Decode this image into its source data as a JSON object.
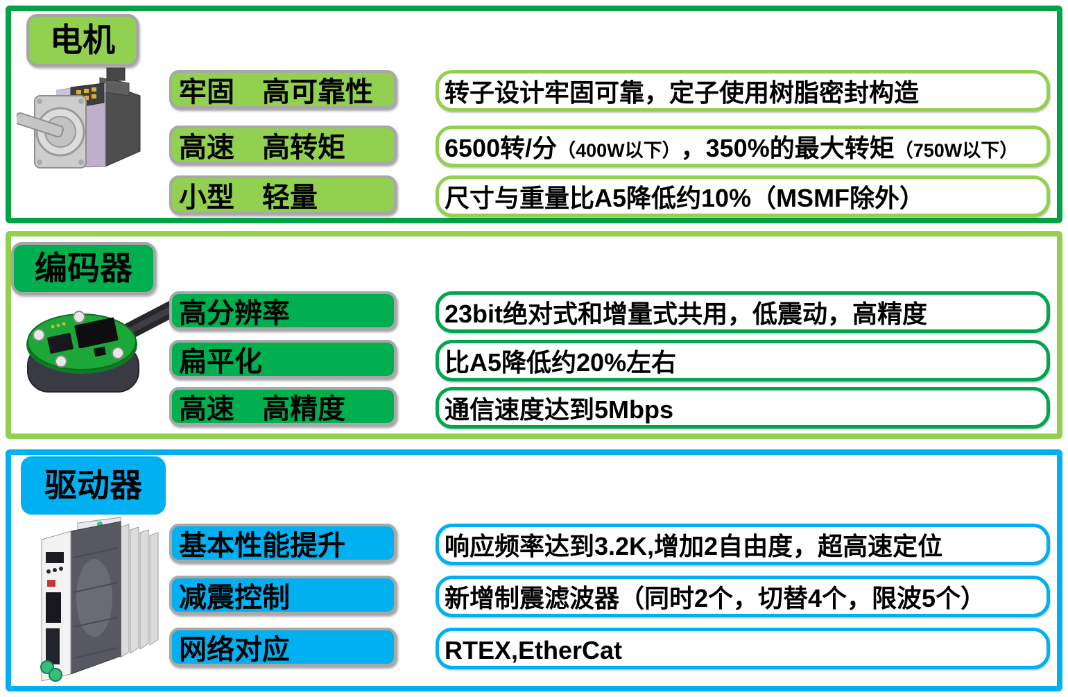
{
  "slide": {
    "sections": [
      {
        "title": "电机",
        "image": "servo-motor-3d-render",
        "theme": {
          "panel_border": "#00a445",
          "badge_fill": "#92d050",
          "desc_border": "#92d050"
        },
        "rows": [
          {
            "label": "牢固　高可靠性",
            "desc": [
              {
                "t": "转子设计牢固可靠，定子使用树脂密封构造"
              }
            ]
          },
          {
            "label": "高速　高转矩",
            "desc": [
              {
                "t": "6500转/分"
              },
              {
                "t": "（400W以下）",
                "small": true
              },
              {
                "t": "，350%的最大转矩"
              },
              {
                "t": "（750W以下）",
                "small": true
              }
            ]
          },
          {
            "label": "小型　轻量",
            "desc": [
              {
                "t": "尺寸与重量比A5降低约10%（MSMF除外）"
              }
            ]
          }
        ]
      },
      {
        "title": "编码器",
        "image": "encoder-3d-render",
        "theme": {
          "panel_border": "#92d050",
          "badge_fill": "#00b050",
          "desc_border": "#00a550"
        },
        "rows": [
          {
            "label": "高分辨率",
            "desc": [
              {
                "t": "23bit绝对式和增量式共用，低震动，高精度"
              }
            ]
          },
          {
            "label": "扁平化",
            "desc": [
              {
                "t": "比A5降低约20%左右"
              }
            ]
          },
          {
            "label": "高速　高精度",
            "desc": [
              {
                "t": "通信速度达到5Mbps"
              }
            ]
          }
        ]
      },
      {
        "title": "驱动器",
        "image": "servo-driver-3d-render",
        "theme": {
          "panel_border": "#00b0f0",
          "badge_fill": "#00b0f0",
          "desc_border": "#00b0f0"
        },
        "rows": [
          {
            "label": "基本性能提升",
            "desc": [
              {
                "t": "响应频率达到3.2K,增加2自由度，超高速定位"
              }
            ]
          },
          {
            "label": "减震控制",
            "desc": [
              {
                "t": "新增制震滤波器（同时2个，切替4个，限波5个）"
              }
            ]
          },
          {
            "label": "网络对应",
            "desc": [
              {
                "t": "RTEX,EtherCat"
              }
            ]
          }
        ]
      }
    ]
  }
}
